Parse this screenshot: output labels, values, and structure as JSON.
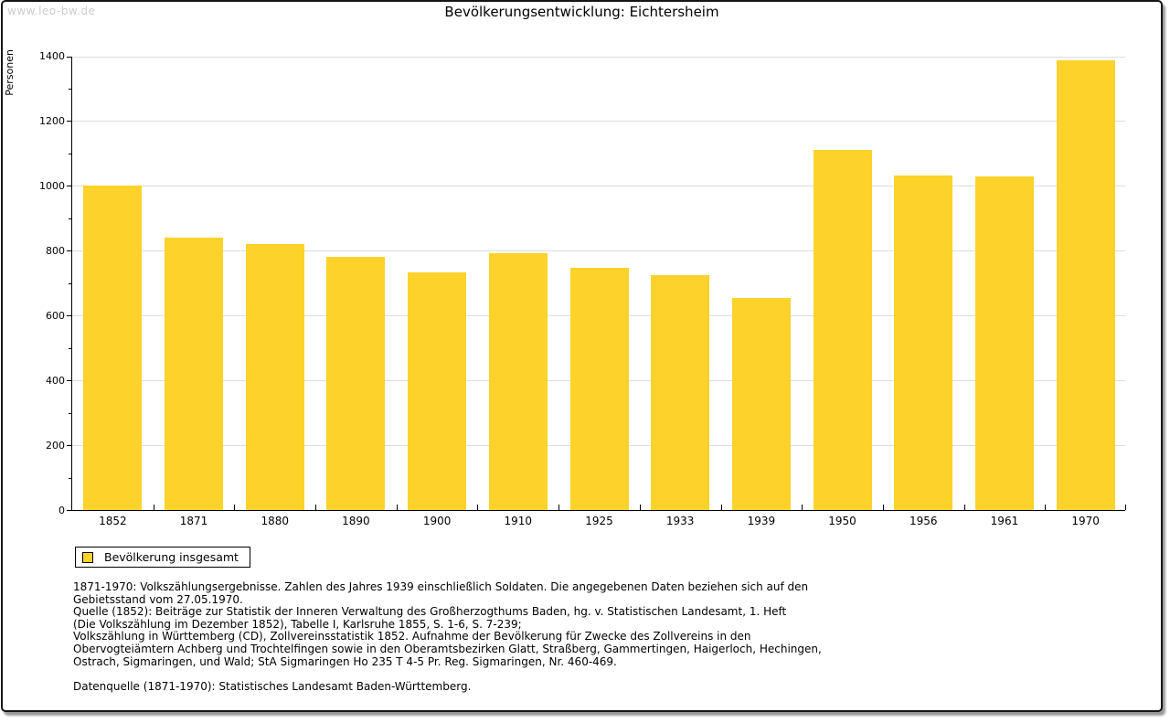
{
  "watermark": "www.leo-bw.de",
  "header": {
    "title": "Bevölkerungsentwicklung: Eichtersheim"
  },
  "legend": {
    "label": "Bevölkerung insgesamt"
  },
  "colors": {
    "bar": "#fcd22b",
    "grid": "#dddddd",
    "axis": "#000000",
    "watermark": "#cccccc"
  },
  "chart_data": {
    "type": "bar",
    "title": "Bevölkerungsentwicklung: Eichtersheim",
    "categories": [
      "1852",
      "1871",
      "1880",
      "1890",
      "1900",
      "1910",
      "1925",
      "1933",
      "1939",
      "1950",
      "1956",
      "1961",
      "1970"
    ],
    "values": [
      1000,
      840,
      821,
      779,
      732,
      791,
      747,
      724,
      654,
      1110,
      1032,
      1029,
      1386
    ],
    "series_name": "Bevölkerung insgesamt",
    "xlabel": "",
    "ylabel": "Personen",
    "ylim": [
      0,
      1400
    ],
    "ytick_major_step": 200,
    "ytick_minor_step": 100,
    "grid": true,
    "legend_position": "bottom-left",
    "bar_color": "#fcd22b"
  },
  "footnotes": {
    "lines": [
      "1871-1970: Volkszählungsergebnisse. Zahlen des Jahres 1939 einschließlich Soldaten. Die angegebenen Daten beziehen sich auf den",
      "Gebietsstand vom 27.05.1970.",
      "Quelle (1852): Beiträge zur Statistik der Inneren Verwaltung des Großherzogthums Baden, hg. v. Statistischen Landesamt, 1. Heft",
      "(Die Volkszählung im Dezember 1852), Tabelle I, Karlsruhe 1855, S. 1-6, S. 7-239;",
      "Volkszählung in Württemberg (CD), Zollvereinsstatistik 1852. Aufnahme der Bevölkerung für Zwecke des Zollvereins in den",
      "Obervogteiämtern Achberg und Trochtelfingen sowie in den Oberamtsbezirken Glatt, Straßberg, Gammertingen, Haigerloch, Hechingen,",
      "Ostrach, Sigmaringen, und Wald; StA Sigmaringen Ho 235 T 4-5 Pr. Reg. Sigmaringen, Nr. 460-469."
    ],
    "datasource": "Datenquelle (1871-1970): Statistisches Landesamt Baden-Württemberg."
  }
}
